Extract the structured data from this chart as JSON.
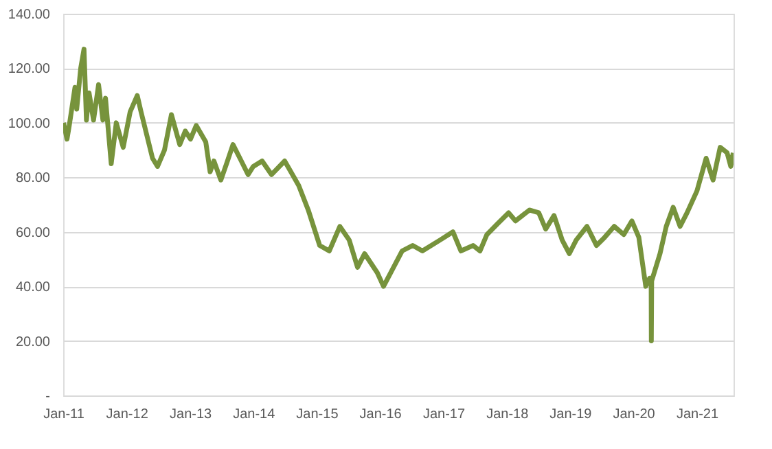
{
  "chart_data": {
    "type": "line",
    "grid": "y",
    "line_style": "solid",
    "marker": "none",
    "xlim": [
      "2011-01-01",
      "2021-08-01"
    ],
    "xticks": [
      {
        "value": "2011-01-01",
        "label": "Jan-11"
      },
      {
        "value": "2012-01-01",
        "label": "Jan-12"
      },
      {
        "value": "2013-01-01",
        "label": "Jan-13"
      },
      {
        "value": "2014-01-01",
        "label": "Jan-14"
      },
      {
        "value": "2015-01-01",
        "label": "Jan-15"
      },
      {
        "value": "2016-01-01",
        "label": "Jan-16"
      },
      {
        "value": "2017-01-01",
        "label": "Jan-17"
      },
      {
        "value": "2018-01-01",
        "label": "Jan-18"
      },
      {
        "value": "2019-01-01",
        "label": "Jan-19"
      },
      {
        "value": "2020-01-01",
        "label": "Jan-20"
      },
      {
        "value": "2021-01-01",
        "label": "Jan-21"
      }
    ],
    "ylim": [
      0,
      140
    ],
    "yticks": [
      {
        "value": 0,
        "label": "-"
      },
      {
        "value": 20,
        "label": "20.00"
      },
      {
        "value": 40,
        "label": "40.00"
      },
      {
        "value": 60,
        "label": "60.00"
      },
      {
        "value": 80,
        "label": "80.00"
      },
      {
        "value": 100,
        "label": "100.00"
      },
      {
        "value": 120,
        "label": "120.00"
      },
      {
        "value": 140,
        "label": "140.00"
      }
    ],
    "x": [
      "2011-01-03",
      "2011-01-23",
      "2011-02-05",
      "2011-03-10",
      "2011-03-20",
      "2011-04-12",
      "2011-05-01",
      "2011-05-15",
      "2011-05-30",
      "2011-06-25",
      "2011-07-24",
      "2011-08-18",
      "2011-09-02",
      "2011-10-05",
      "2011-11-03",
      "2011-12-13",
      "2012-01-22",
      "2012-03-03",
      "2012-03-25",
      "2012-05-30",
      "2012-06-28",
      "2012-08-07",
      "2012-09-16",
      "2012-11-03",
      "2012-12-05",
      "2013-01-04",
      "2013-02-06",
      "2013-04-02",
      "2013-04-27",
      "2013-05-19",
      "2013-06-28",
      "2013-07-31",
      "2013-09-06",
      "2013-10-16",
      "2013-12-02",
      "2014-01-01",
      "2014-02-21",
      "2014-04-16",
      "2014-07-01",
      "2014-09-20",
      "2014-11-14",
      "2015-01-19",
      "2015-03-15",
      "2015-05-15",
      "2015-07-08",
      "2015-08-25",
      "2015-10-05",
      "2015-12-17",
      "2016-01-22",
      "2016-03-28",
      "2016-05-08",
      "2016-07-08",
      "2016-09-02",
      "2016-12-13",
      "2017-02-25",
      "2017-04-12",
      "2017-06-21",
      "2017-07-31",
      "2017-09-09",
      "2017-11-10",
      "2018-01-12",
      "2018-02-21",
      "2018-05-12",
      "2018-07-05",
      "2018-08-14",
      "2018-10-01",
      "2018-11-17",
      "2018-12-28",
      "2019-02-06",
      "2019-04-09",
      "2019-06-03",
      "2019-07-20",
      "2019-09-13",
      "2019-11-07",
      "2019-12-24",
      "2020-02-02",
      "2020-03-13",
      "2020-04-04",
      "2020-04-13",
      "2020-04-14",
      "2020-04-16",
      "2020-06-03",
      "2020-07-09",
      "2020-08-18",
      "2020-09-27",
      "2020-11-06",
      "2021-01-02",
      "2021-02-24",
      "2021-04-05",
      "2021-05-16",
      "2021-06-25",
      "2021-07-16",
      "2021-07-30"
    ],
    "series": [
      {
        "color": "#77933c",
        "values": [
          100,
          94,
          99,
          113,
          105,
          120,
          127,
          101,
          111,
          101,
          114,
          101,
          109,
          85,
          100,
          91,
          104,
          110,
          104,
          87,
          84,
          90,
          103,
          92,
          97,
          94,
          99,
          93,
          82,
          86,
          79,
          85,
          92,
          87,
          81,
          84,
          86,
          81,
          86,
          77,
          68,
          55,
          53,
          62,
          57,
          47,
          52,
          45,
          40,
          48,
          53,
          55,
          53,
          57,
          60,
          53,
          55,
          53,
          59,
          63,
          67,
          64,
          68,
          67,
          61,
          66,
          57,
          52,
          57,
          62,
          55,
          58,
          62,
          59,
          64,
          58,
          40,
          43,
          43,
          20,
          42,
          52,
          62,
          69,
          62,
          67,
          75,
          87,
          79,
          91,
          89,
          84,
          89
        ]
      }
    ]
  }
}
